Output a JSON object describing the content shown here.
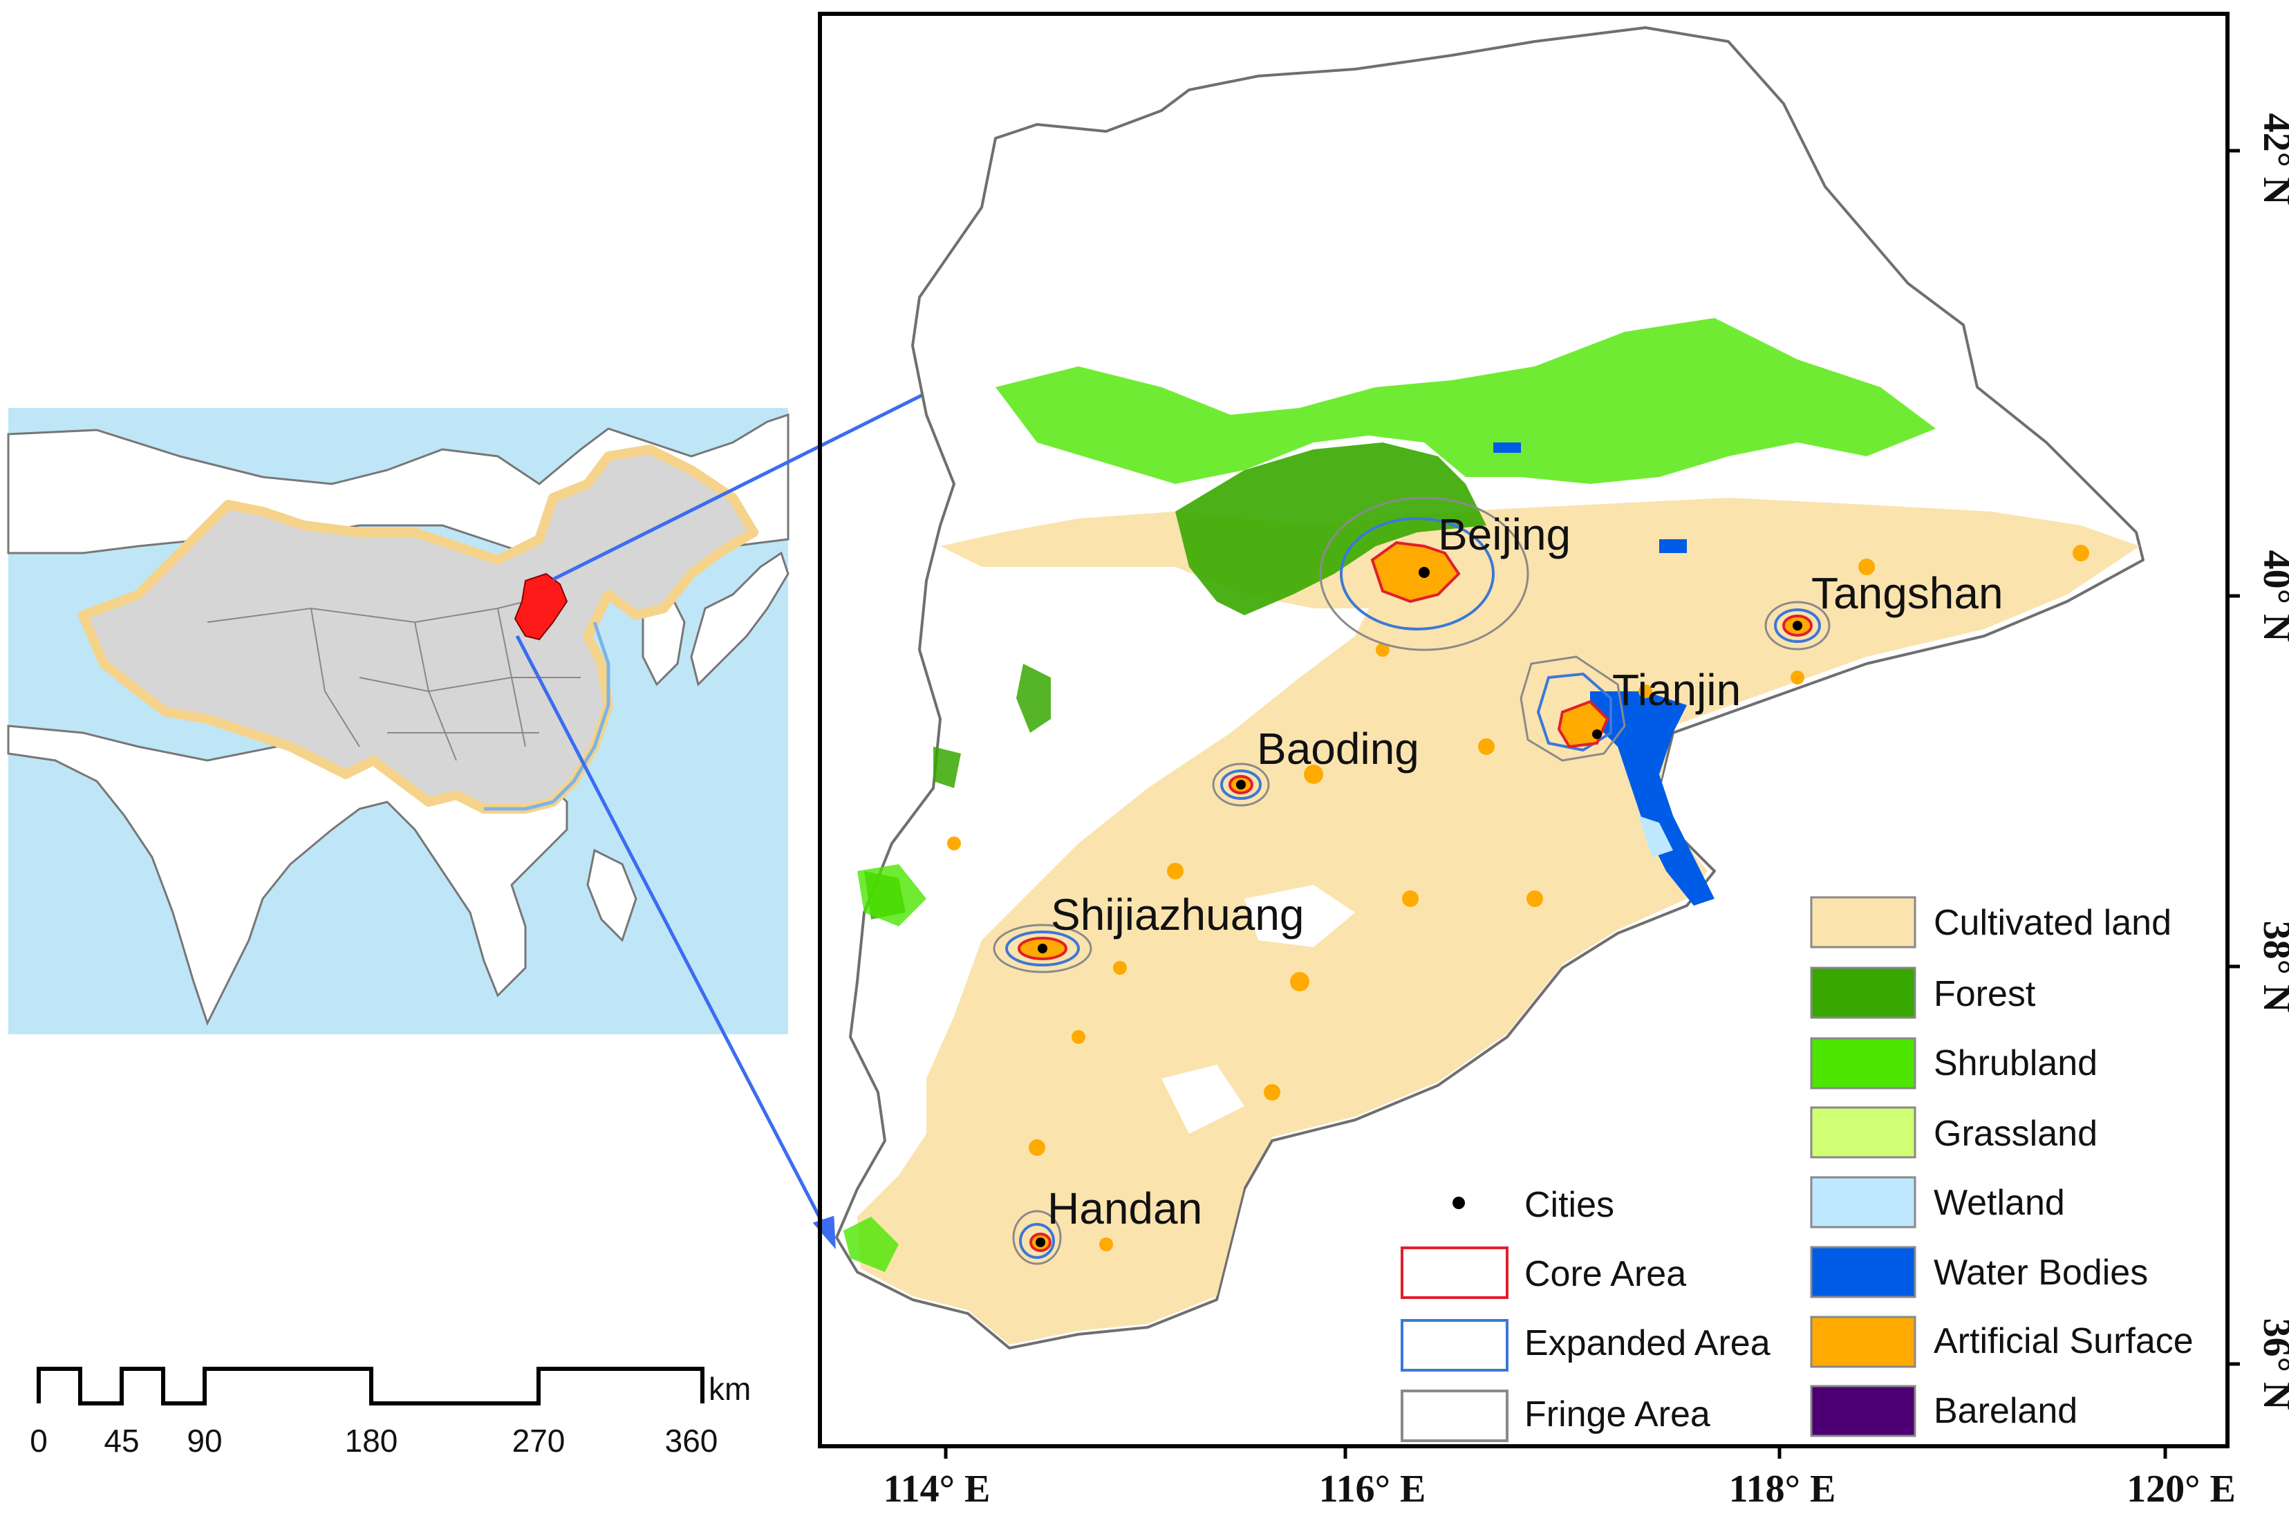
{
  "inset_map": {
    "region_colors": {
      "highlight": "#ff1a1a",
      "country": "#d6d6d6",
      "ocean": "#bfe6f7",
      "border_glow": "#f5d38a"
    }
  },
  "scale_bar": {
    "unit": "km",
    "ticks": [
      "0",
      "45",
      "90",
      "180",
      "270",
      "360"
    ]
  },
  "main_map": {
    "cities": [
      {
        "name": "Beijing"
      },
      {
        "name": "Tangshan"
      },
      {
        "name": "Tianjin"
      },
      {
        "name": "Baoding"
      },
      {
        "name": "Shijiazhuang"
      },
      {
        "name": "Handan"
      }
    ],
    "x_ticks": [
      "114° E",
      "116° E",
      "118° E",
      "120° E"
    ],
    "y_ticks": [
      "42° N",
      "40° N",
      "38° N",
      "36° N"
    ]
  },
  "legend_left": {
    "items": [
      {
        "label": "Cities",
        "symbol": "dot",
        "color": "#000000"
      },
      {
        "label": "Core Area",
        "symbol": "box",
        "color": "#e0202a"
      },
      {
        "label": "Expanded Area",
        "symbol": "box",
        "color": "#3b78d8"
      },
      {
        "label": "Fringe Area",
        "symbol": "box",
        "color": "#8a8a8a"
      }
    ]
  },
  "legend_right": {
    "items": [
      {
        "label": "Cultivated land",
        "color": "#fbe3ae"
      },
      {
        "label": "Forest",
        "color": "#38a800"
      },
      {
        "label": "Shrubland",
        "color": "#4ce600"
      },
      {
        "label": "Grassland",
        "color": "#d1ff73"
      },
      {
        "label": "Wetland",
        "color": "#bee8ff"
      },
      {
        "label": "Water Bodies",
        "color": "#005ce6"
      },
      {
        "label": "Artificial Surface",
        "color": "#ffaa00"
      },
      {
        "label": "Bareland",
        "color": "#4c0073"
      }
    ]
  }
}
